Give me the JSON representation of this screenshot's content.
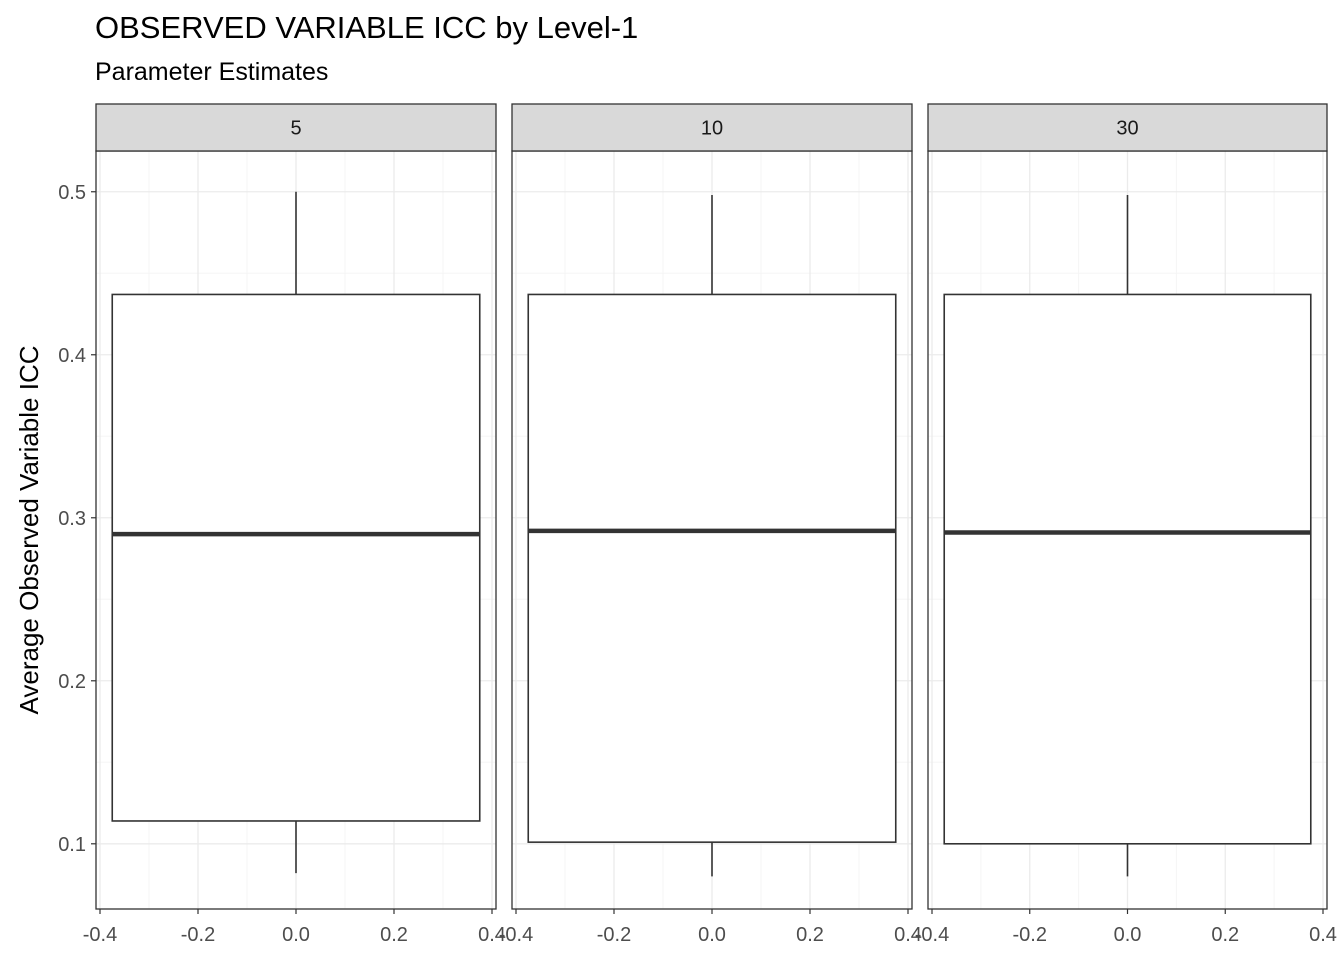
{
  "chart_data": {
    "type": "boxplot",
    "title": "OBSERVED VARIABLE ICC by Level-1",
    "subtitle": "Parameter Estimates",
    "ylabel": "Average Observed Variable ICC",
    "xlabel": "",
    "xlim": [
      -0.4,
      0.4
    ],
    "ylim": [
      0.06,
      0.525
    ],
    "x_ticks": [
      -0.4,
      -0.2,
      0.0,
      0.2,
      0.4
    ],
    "x_tick_labels": [
      "-0.4",
      "-0.2",
      "0.0",
      "0.2",
      "0.4"
    ],
    "y_ticks": [
      0.1,
      0.2,
      0.3,
      0.4,
      0.5
    ],
    "y_tick_labels": [
      "0.1",
      "0.2",
      "0.3",
      "0.4",
      "0.5"
    ],
    "grid": true,
    "box_x_range": [
      -0.375,
      0.375
    ],
    "facets": [
      {
        "label": "5",
        "whisker_low": 0.082,
        "q1": 0.114,
        "median": 0.29,
        "q3": 0.437,
        "whisker_high": 0.5
      },
      {
        "label": "10",
        "whisker_low": 0.08,
        "q1": 0.101,
        "median": 0.292,
        "q3": 0.437,
        "whisker_high": 0.498
      },
      {
        "label": "30",
        "whisker_low": 0.08,
        "q1": 0.1,
        "median": 0.291,
        "q3": 0.437,
        "whisker_high": 0.498
      }
    ],
    "colors": {
      "strip_fill": "#d9d9d9",
      "box_line": "#333333",
      "grid_major": "#ebebeb",
      "grid_minor": "#f5f5f5"
    }
  }
}
